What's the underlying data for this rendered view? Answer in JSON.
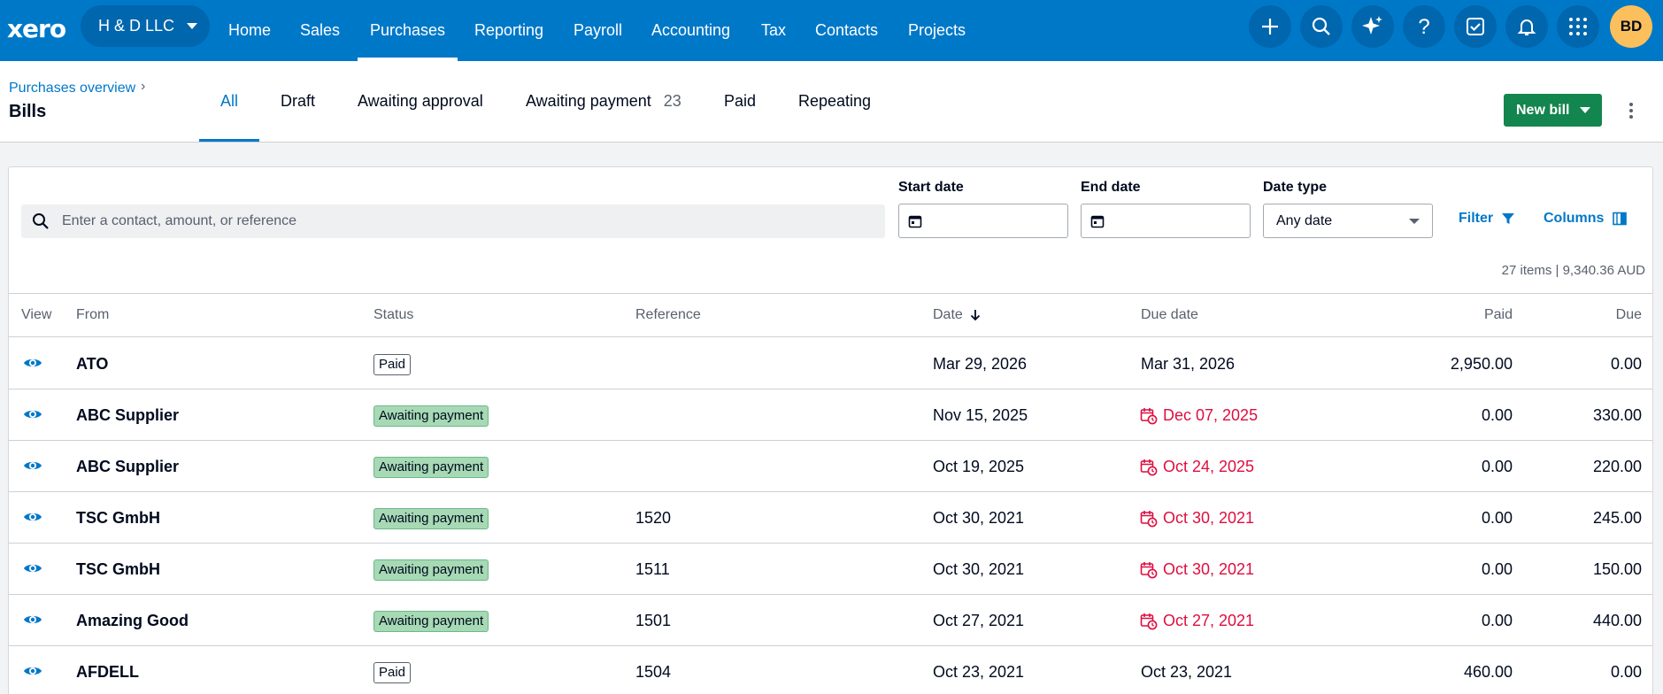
{
  "topbar": {
    "logo": "xero",
    "org": "H & D LLC",
    "nav": [
      "Home",
      "Sales",
      "Purchases",
      "Reporting",
      "Payroll",
      "Accounting",
      "Tax",
      "Contacts",
      "Projects"
    ],
    "active_nav": "Purchases",
    "icons": [
      "plus-icon",
      "search-icon",
      "sparkle-icon",
      "help-icon",
      "tasks-icon",
      "bell-icon",
      "apps-grid-icon"
    ],
    "avatar": "BD",
    "color": "#0078c8"
  },
  "subheader": {
    "breadcrumb": "Purchases overview",
    "breadcrumb_sep": "›",
    "title": "Bills",
    "tabs": [
      {
        "label": "All",
        "count": ""
      },
      {
        "label": "Draft",
        "count": ""
      },
      {
        "label": "Awaiting approval",
        "count": ""
      },
      {
        "label": "Awaiting payment",
        "count": "23"
      },
      {
        "label": "Paid",
        "count": ""
      },
      {
        "label": "Repeating",
        "count": ""
      }
    ],
    "active_tab": "All",
    "new_bill": "New bill"
  },
  "filters": {
    "search_placeholder": "Enter a contact, amount, or reference",
    "start_date_label": "Start date",
    "end_date_label": "End date",
    "date_type_label": "Date type",
    "date_type_value": "Any date",
    "filter": "Filter",
    "columns": "Columns"
  },
  "summary": "27 items | 9,340.36 AUD",
  "table": {
    "headers": {
      "view": "View",
      "from": "From",
      "status": "Status",
      "reference": "Reference",
      "date": "Date",
      "due_date": "Due date",
      "paid": "Paid",
      "due": "Due"
    },
    "rows": [
      {
        "from": "ATO",
        "status": "Paid",
        "reference": "",
        "date": "Mar 29, 2026",
        "due_date": "Mar 31, 2026",
        "overdue": false,
        "paid": "2,950.00",
        "due": "0.00"
      },
      {
        "from": "ABC Supplier",
        "status": "Awaiting payment",
        "reference": "",
        "date": "Nov 15, 2025",
        "due_date": "Dec 07, 2025",
        "overdue": true,
        "paid": "0.00",
        "due": "330.00"
      },
      {
        "from": "ABC Supplier",
        "status": "Awaiting payment",
        "reference": "",
        "date": "Oct 19, 2025",
        "due_date": "Oct 24, 2025",
        "overdue": true,
        "paid": "0.00",
        "due": "220.00"
      },
      {
        "from": "TSC GmbH",
        "status": "Awaiting payment",
        "reference": "1520",
        "date": "Oct 30, 2021",
        "due_date": "Oct 30, 2021",
        "overdue": true,
        "paid": "0.00",
        "due": "245.00"
      },
      {
        "from": "TSC GmbH",
        "status": "Awaiting payment",
        "reference": "1511",
        "date": "Oct 30, 2021",
        "due_date": "Oct 30, 2021",
        "overdue": true,
        "paid": "0.00",
        "due": "150.00"
      },
      {
        "from": "Amazing Good",
        "status": "Awaiting payment",
        "reference": "1501",
        "date": "Oct 27, 2021",
        "due_date": "Oct 27, 2021",
        "overdue": true,
        "paid": "0.00",
        "due": "440.00"
      },
      {
        "from": "AFDELL",
        "status": "Paid",
        "reference": "1504",
        "date": "Oct 23, 2021",
        "due_date": "Oct 23, 2021",
        "overdue": false,
        "paid": "460.00",
        "due": "0.00"
      }
    ]
  }
}
